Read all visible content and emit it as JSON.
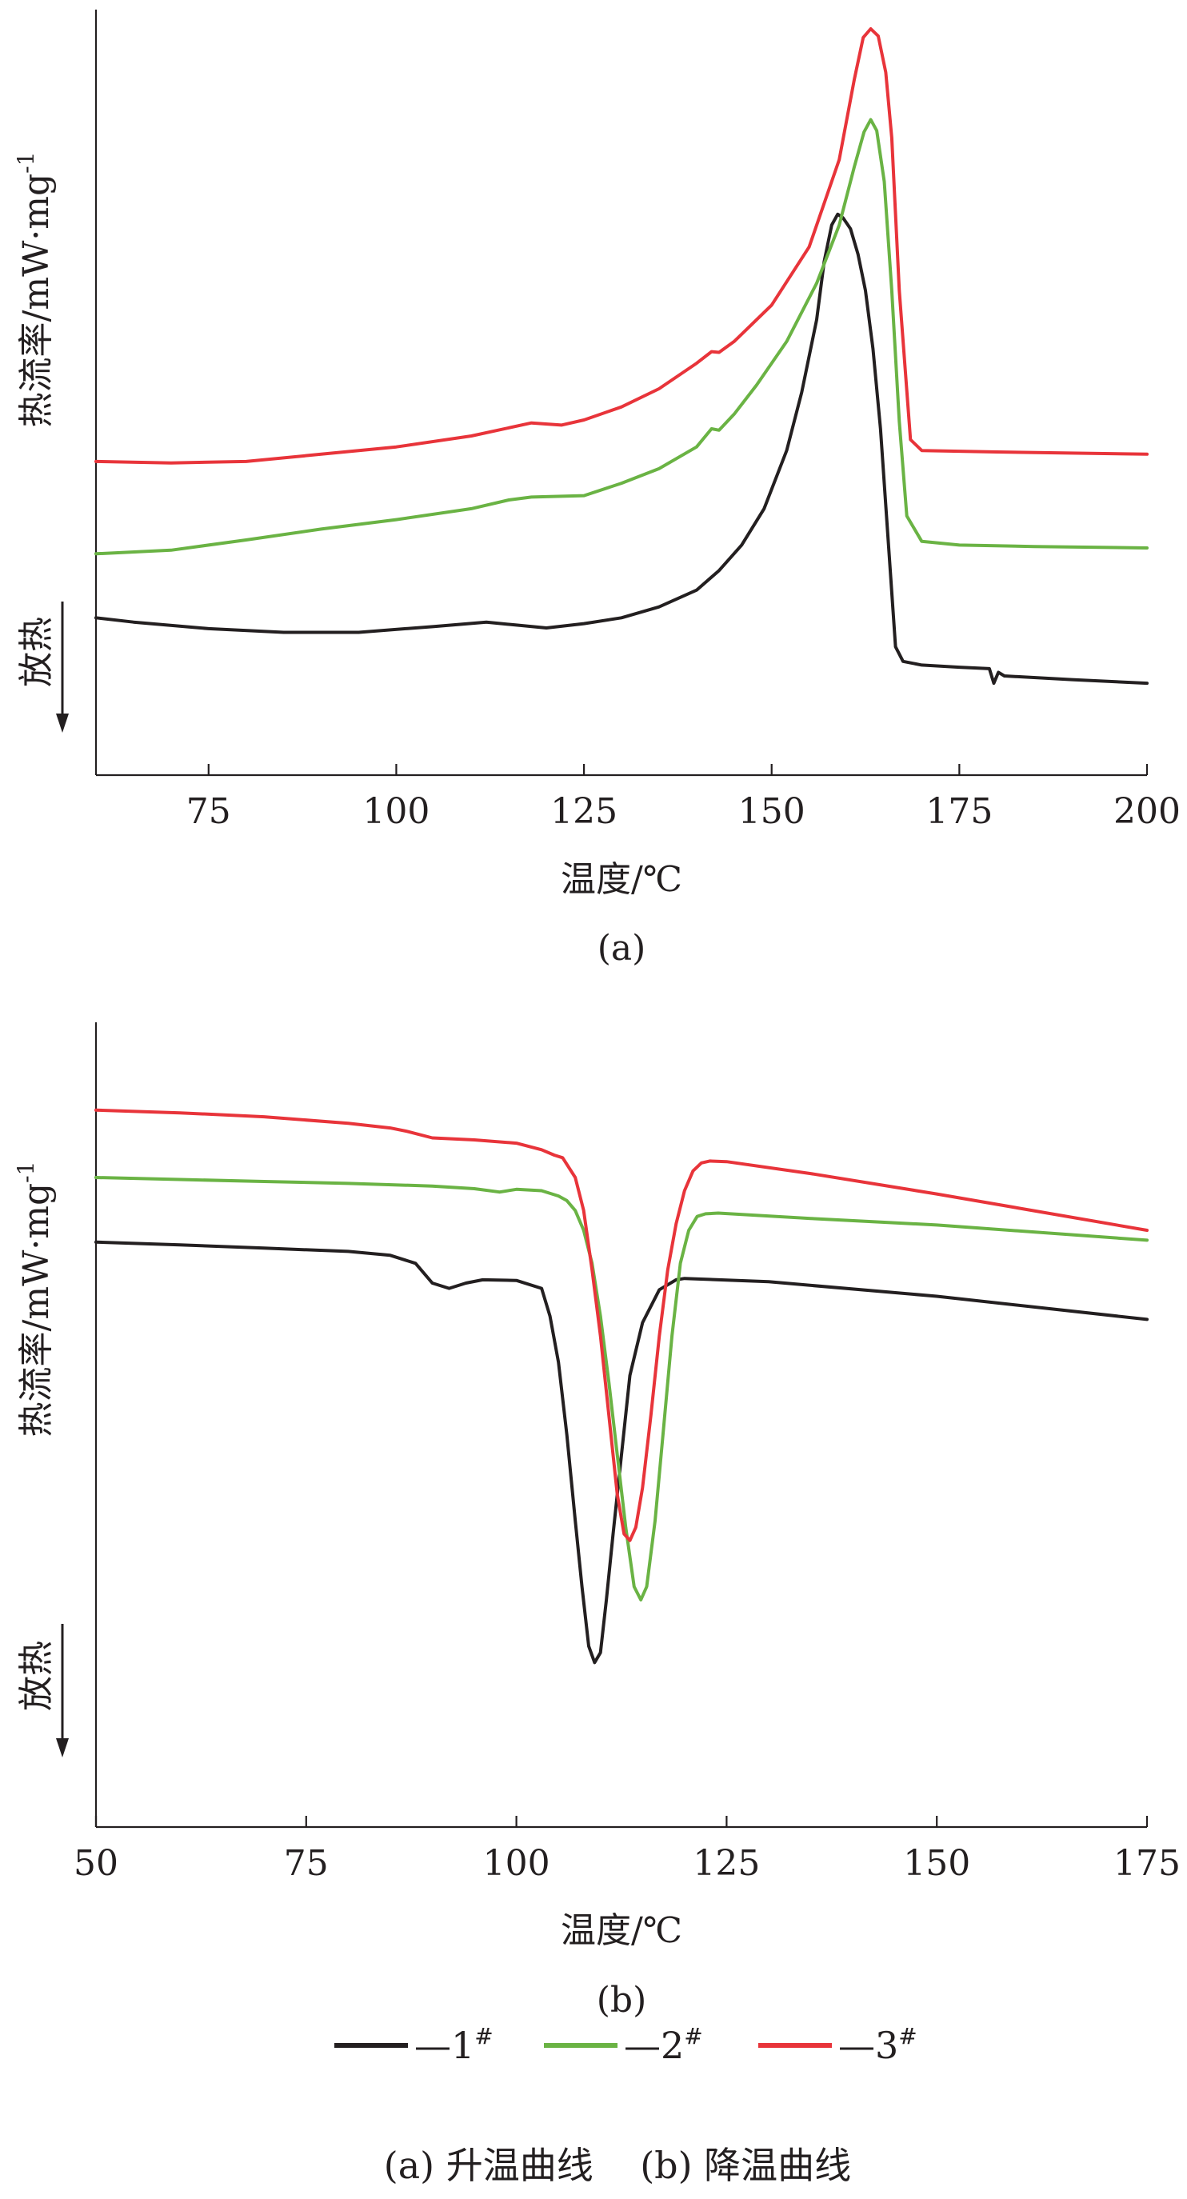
{
  "figure": {
    "legend": {
      "items": [
        {
          "label": "—1",
          "sup": "#",
          "color": "#231f20"
        },
        {
          "label": "—2",
          "sup": "#",
          "color": "#6ab344"
        },
        {
          "label": "—3",
          "sup": "#",
          "color": "#e8343a"
        }
      ]
    },
    "caption": "(a) 升温曲线    (b) 降温曲线"
  },
  "chart_data": [
    {
      "type": "line",
      "panel_label": "(a)",
      "xlabel": "温度/℃",
      "ylabel": "热流率/mW·mg",
      "ylabel_sup": "-1",
      "direction_label": "放热",
      "direction_arrow": "down",
      "xlim": [
        60,
        200
      ],
      "xticks": [
        75,
        100,
        125,
        150,
        175,
        200
      ],
      "ylim": [
        0,
        1
      ],
      "yticks": [],
      "grid": false,
      "series": [
        {
          "color": "#231f20",
          "x": [
            60,
            65,
            75,
            85,
            95,
            105,
            112,
            116,
            120,
            125,
            130,
            135,
            140,
            143,
            146,
            149,
            152,
            154,
            156,
            157,
            158,
            158.8,
            159.5,
            160.5,
            161.5,
            162.5,
            163.5,
            164.5,
            165.5,
            166.5,
            167.5,
            170,
            175,
            179,
            179.6,
            180.2,
            181,
            190,
            200
          ],
          "y": [
            0.19,
            0.184,
            0.175,
            0.17,
            0.17,
            0.178,
            0.184,
            0.18,
            0.176,
            0.182,
            0.19,
            0.205,
            0.228,
            0.255,
            0.29,
            0.34,
            0.42,
            0.5,
            0.6,
            0.68,
            0.73,
            0.745,
            0.74,
            0.725,
            0.69,
            0.64,
            0.56,
            0.45,
            0.3,
            0.15,
            0.13,
            0.125,
            0.122,
            0.12,
            0.1,
            0.115,
            0.11,
            0.105,
            0.1
          ]
        },
        {
          "color": "#6ab344",
          "x": [
            60,
            70,
            80,
            90,
            100,
            110,
            115,
            118,
            125,
            130,
            135,
            140,
            142,
            143,
            145,
            148,
            152,
            156,
            159,
            161,
            162.3,
            163.2,
            164,
            165,
            166,
            167,
            168,
            170,
            175,
            185,
            200
          ],
          "y": [
            0.278,
            0.283,
            0.297,
            0.312,
            0.325,
            0.34,
            0.352,
            0.356,
            0.358,
            0.375,
            0.395,
            0.425,
            0.45,
            0.448,
            0.47,
            0.51,
            0.57,
            0.65,
            0.73,
            0.81,
            0.858,
            0.875,
            0.86,
            0.79,
            0.64,
            0.46,
            0.33,
            0.295,
            0.29,
            0.288,
            0.286
          ]
        },
        {
          "color": "#e8343a",
          "x": [
            60,
            70,
            80,
            90,
            100,
            110,
            118,
            122,
            125,
            130,
            135,
            140,
            142,
            143,
            145,
            150,
            155,
            159,
            161,
            162.2,
            163.2,
            164.2,
            165.2,
            166,
            167,
            168.5,
            170,
            180,
            200
          ],
          "y": [
            0.405,
            0.403,
            0.405,
            0.415,
            0.425,
            0.44,
            0.458,
            0.455,
            0.462,
            0.48,
            0.505,
            0.54,
            0.556,
            0.555,
            0.57,
            0.62,
            0.7,
            0.82,
            0.93,
            0.988,
            1.0,
            0.99,
            0.94,
            0.85,
            0.64,
            0.435,
            0.42,
            0.418,
            0.415
          ]
        }
      ]
    },
    {
      "type": "line",
      "panel_label": "(b)",
      "xlabel": "温度/℃",
      "ylabel": "热流率/mW·mg",
      "ylabel_sup": "-1",
      "direction_label": "放热",
      "direction_arrow": "down",
      "xlim": [
        50,
        175
      ],
      "xticks": [
        50,
        75,
        100,
        125,
        150,
        175
      ],
      "ylim": [
        0,
        1
      ],
      "yticks": [],
      "grid": false,
      "series": [
        {
          "color": "#231f20",
          "x": [
            50,
            60,
            70,
            80,
            85,
            88,
            90,
            92,
            94,
            96,
            100,
            103,
            104,
            105,
            106,
            107,
            107.8,
            108.6,
            109.3,
            110,
            110.7,
            111.5,
            112.5,
            113.5,
            115,
            117,
            119,
            120,
            130,
            150,
            175
          ],
          "y": [
            0.742,
            0.738,
            0.733,
            0.728,
            0.722,
            0.71,
            0.68,
            0.672,
            0.68,
            0.685,
            0.684,
            0.672,
            0.63,
            0.56,
            0.45,
            0.32,
            0.22,
            0.13,
            0.105,
            0.12,
            0.2,
            0.3,
            0.42,
            0.54,
            0.62,
            0.67,
            0.685,
            0.687,
            0.682,
            0.66,
            0.625
          ]
        },
        {
          "color": "#6ab344",
          "x": [
            50,
            60,
            70,
            80,
            90,
            95,
            98,
            100,
            103,
            105,
            106,
            107,
            108,
            109,
            110,
            111,
            112,
            113,
            114,
            114.8,
            115.5,
            116.5,
            117.5,
            118.5,
            119.5,
            120.5,
            121.5,
            122.5,
            124,
            135,
            150,
            175
          ],
          "y": [
            0.84,
            0.837,
            0.834,
            0.831,
            0.827,
            0.823,
            0.818,
            0.822,
            0.82,
            0.812,
            0.805,
            0.79,
            0.76,
            0.71,
            0.63,
            0.53,
            0.42,
            0.31,
            0.22,
            0.2,
            0.22,
            0.32,
            0.46,
            0.6,
            0.71,
            0.76,
            0.781,
            0.785,
            0.786,
            0.778,
            0.768,
            0.745
          ]
        },
        {
          "color": "#e8343a",
          "x": [
            50,
            60,
            70,
            80,
            85,
            87,
            90,
            95,
            100,
            103,
            104.5,
            105.5,
            107,
            108,
            109,
            110,
            111,
            112,
            112.8,
            113.5,
            114.2,
            115,
            116,
            117,
            118,
            119,
            120,
            121,
            122,
            123,
            125,
            135,
            150,
            175
          ],
          "y": [
            0.942,
            0.938,
            0.932,
            0.922,
            0.915,
            0.91,
            0.9,
            0.897,
            0.892,
            0.882,
            0.874,
            0.87,
            0.84,
            0.79,
            0.7,
            0.6,
            0.48,
            0.36,
            0.3,
            0.29,
            0.31,
            0.37,
            0.48,
            0.6,
            0.7,
            0.77,
            0.82,
            0.85,
            0.862,
            0.865,
            0.864,
            0.846,
            0.815,
            0.76
          ]
        }
      ]
    }
  ]
}
